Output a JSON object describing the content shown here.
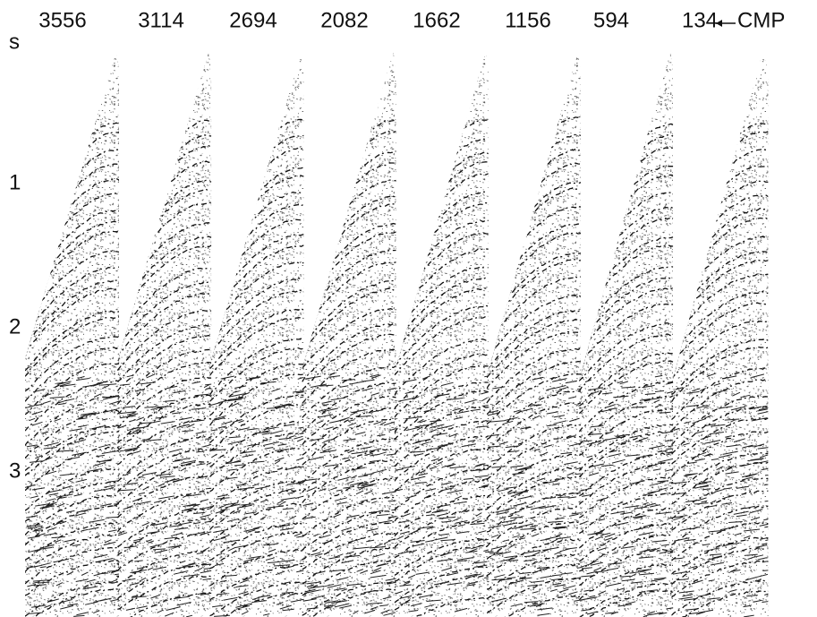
{
  "header": {
    "unit": "s",
    "cmp_numbers": [
      "3556",
      "3114",
      "2694",
      "2082",
      "1662",
      "1156",
      "594",
      "134"
    ],
    "cmp_label": "CMP"
  },
  "time_axis": {
    "labels": [
      "1",
      "2",
      "3"
    ]
  }
}
